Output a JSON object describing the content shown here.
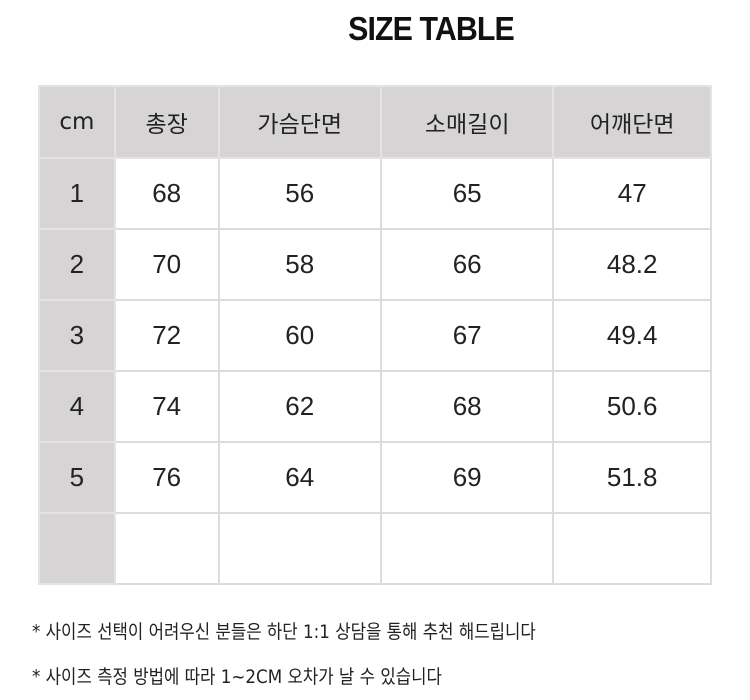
{
  "title": "SIZE TABLE",
  "table": {
    "headers": [
      "cm",
      "총장",
      "가슴단면",
      "소매길이",
      "어깨단면"
    ],
    "rows": [
      [
        "1",
        "68",
        "56",
        "65",
        "47"
      ],
      [
        "2",
        "70",
        "58",
        "66",
        "48.2"
      ],
      [
        "3",
        "72",
        "60",
        "67",
        "49.4"
      ],
      [
        "4",
        "74",
        "62",
        "68",
        "50.6"
      ],
      [
        "5",
        "76",
        "64",
        "69",
        "51.8"
      ],
      [
        "",
        "",
        "",
        "",
        ""
      ]
    ]
  },
  "notes": [
    "* 사이즈 선택이 어려우신 분들은 하단 1:1 상담을 통해 추천 해드립니다",
    "* 사이즈 측정 방법에 따라 1~2CM 오차가 날 수 있습니다"
  ],
  "colors": {
    "header_bg": "#d6d4d4",
    "border": "#dcdcdc"
  }
}
